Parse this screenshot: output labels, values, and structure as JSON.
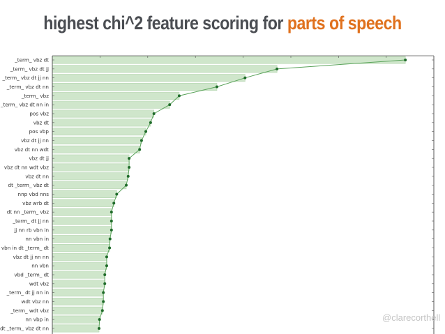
{
  "title": {
    "prefix": "highest chi^2 feature scoring for ",
    "accent": "parts of speech",
    "accent_color": "#e0711d",
    "text_color": "#4a4d52"
  },
  "watermark": "@clarecorthell",
  "colors": {
    "bar_fill": "#cfe6cb",
    "bar_edge": "#b3d4ae",
    "line": "#5aa35a",
    "marker": "#1f6b2a",
    "axis": "#555555"
  },
  "chart_data": {
    "type": "bar",
    "orientation": "horizontal",
    "title": "highest chi^2 feature scoring for parts of speech",
    "xlabel": "",
    "ylabel": "",
    "x_tick_labels_visible": false,
    "x_ticks_count": 8,
    "xlim": [
      0,
      8
    ],
    "value_units": "relative (tick units; axis tick labels not shown)",
    "overlay": "line with dot markers connecting bar ends",
    "grid": false,
    "legend": null,
    "categories": [
      "_term_ vbz dt",
      "_term_ vbz dt jj",
      "_term_ vbz dt jj nn",
      "_term_ vbz dt nn",
      "_term_ vbz",
      "_term_ vbz dt nn in",
      "pos vbz",
      "vbz dt",
      "pos vbp",
      "vbz dt jj nn",
      "vbz dt nn wdt",
      "vbz dt jj",
      "vbz dt nn wdt vbz",
      "vbz dt nn",
      "dt _term_ vbz dt",
      "nnp vbd nns",
      "vbz wrb dt",
      "dt nn _term_ vbz",
      "_term_ dt jj nn",
      "jj nn rb vbn in",
      "nn vbn in",
      "vbn in dt _term_ dt",
      "vbz dt jj nn nn",
      "nn vbn",
      "vbd _term_ dt",
      "wdt vbz",
      "_term_ dt jj nn in",
      "wdt vbz nn",
      "_term_ wdt vbz",
      "nn vbp in",
      "dt _term_ vbz dt nn"
    ],
    "values": [
      7.4,
      4.71,
      4.04,
      3.45,
      2.66,
      2.46,
      2.13,
      2.06,
      1.96,
      1.87,
      1.83,
      1.61,
      1.61,
      1.59,
      1.55,
      1.35,
      1.29,
      1.24,
      1.24,
      1.24,
      1.21,
      1.2,
      1.14,
      1.14,
      1.1,
      1.1,
      1.07,
      1.07,
      1.05,
      0.99,
      0.98
    ]
  }
}
